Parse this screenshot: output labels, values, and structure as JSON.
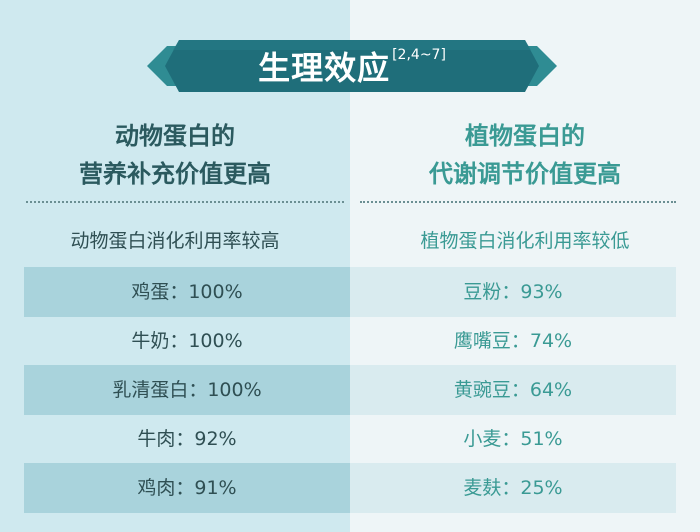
{
  "banner": {
    "title": "生理效应",
    "ref": "[2,4~7]"
  },
  "left": {
    "heading_line1": "动物蛋白的",
    "heading_line2": "营养补充价值更高",
    "subtitle": "动物蛋白消化利用率较高",
    "rows": [
      {
        "label": "鸡蛋：100%"
      },
      {
        "label": "牛奶：100%"
      },
      {
        "label": "乳清蛋白：100%"
      },
      {
        "label": "牛肉：92%"
      },
      {
        "label": "鸡肉：91%"
      }
    ]
  },
  "right": {
    "heading_line1": "植物蛋白的",
    "heading_line2": "代谢调节价值更高",
    "subtitle": "植物蛋白消化利用率较低",
    "rows": [
      {
        "label": "豆粉：93%"
      },
      {
        "label": "鹰嘴豆：74%"
      },
      {
        "label": "黄豌豆：64%"
      },
      {
        "label": "小麦：51%"
      },
      {
        "label": "麦麸：25%"
      }
    ]
  },
  "colors": {
    "left_bg": "#cfe9ef",
    "right_bg": "#eef5f7",
    "ribbon": "#1f6e7a",
    "left_text": "#2b5a5f",
    "right_text": "#3a9a94"
  }
}
